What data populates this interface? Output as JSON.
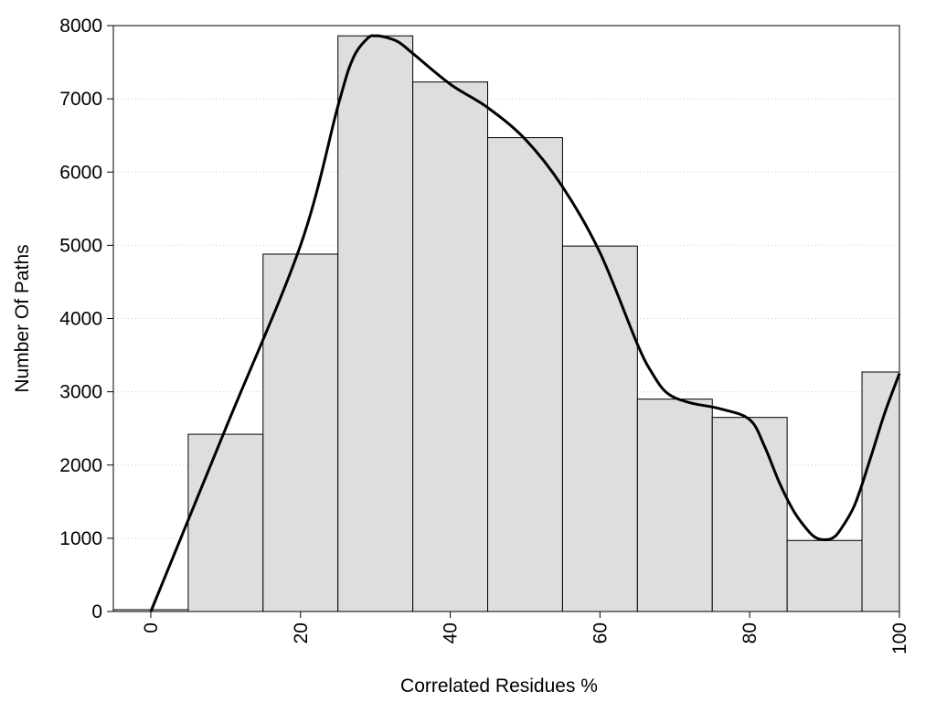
{
  "chart_data": {
    "type": "bar",
    "xlabel": "Correlated Residues %",
    "ylabel": "Number Of Paths",
    "xlim": [
      -5,
      100
    ],
    "ylim": [
      0,
      8000
    ],
    "grid": "horizontal dotted",
    "x_ticks": [
      "0",
      "20",
      "40",
      "60",
      "80",
      "100"
    ],
    "y_ticks": [
      "0",
      "1000",
      "2000",
      "3000",
      "4000",
      "5000",
      "6000",
      "7000",
      "8000"
    ],
    "bars": [
      {
        "from": -5,
        "to": 5,
        "value": 25
      },
      {
        "from": 5,
        "to": 15,
        "value": 2420
      },
      {
        "from": 15,
        "to": 25,
        "value": 4880
      },
      {
        "from": 25,
        "to": 35,
        "value": 7860
      },
      {
        "from": 35,
        "to": 45,
        "value": 7230
      },
      {
        "from": 45,
        "to": 55,
        "value": 6470
      },
      {
        "from": 55,
        "to": 65,
        "value": 4990
      },
      {
        "from": 65,
        "to": 75,
        "value": 2900
      },
      {
        "from": 75,
        "to": 85,
        "value": 2650
      },
      {
        "from": 85,
        "to": 95,
        "value": 970
      },
      {
        "from": 95,
        "to": 100,
        "value": 3270
      }
    ],
    "curve": {
      "x": [
        0,
        10,
        20,
        25,
        27,
        29,
        30,
        31,
        33,
        35,
        40,
        45,
        50,
        55,
        60,
        65,
        67,
        69,
        72,
        76,
        80,
        82,
        84,
        86,
        88,
        89,
        90,
        91,
        92,
        94,
        96,
        98,
        100
      ],
      "y": [
        0,
        2500,
        5000,
        6900,
        7550,
        7830,
        7860,
        7850,
        7780,
        7620,
        7200,
        6880,
        6450,
        5800,
        4900,
        3650,
        3250,
        2980,
        2850,
        2770,
        2620,
        2250,
        1750,
        1350,
        1080,
        1000,
        980,
        1000,
        1100,
        1450,
        2050,
        2700,
        3250
      ]
    },
    "colors": {
      "bar_fill": "#dedede",
      "bar_stroke": "#000000",
      "curve": "#000000",
      "grid": "#cccccc"
    }
  }
}
